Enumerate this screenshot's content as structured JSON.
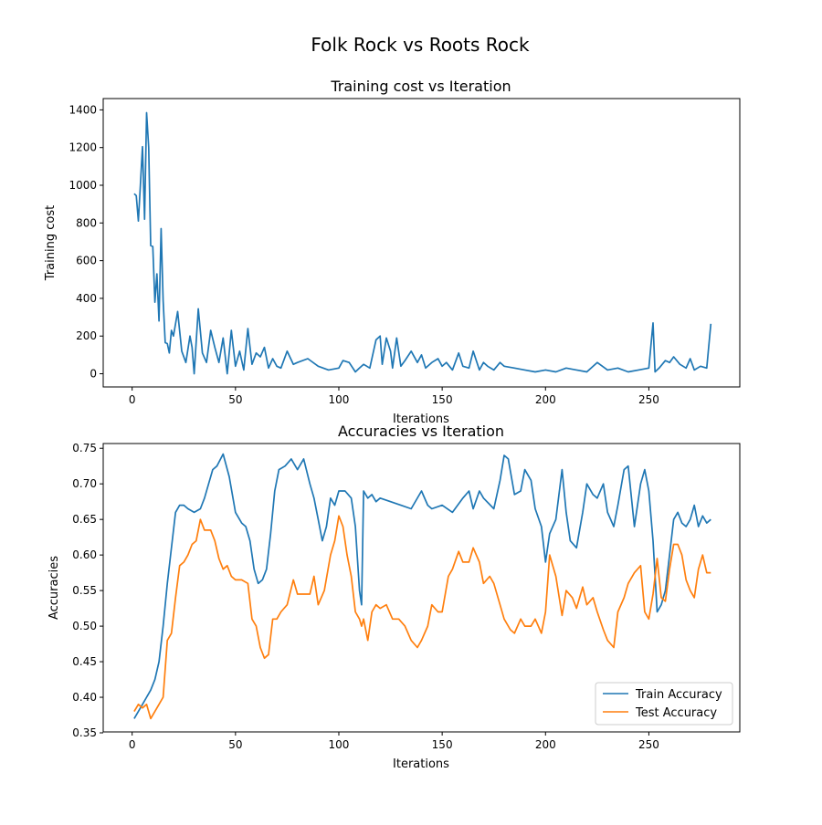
{
  "suptitle": "Folk Rock vs Roots Rock",
  "colors": {
    "blue": "#1f77b4",
    "orange": "#ff7f0e"
  },
  "chart_data": [
    {
      "type": "line",
      "title": "Training cost vs Iteration",
      "xlabel": "Iterations",
      "ylabel": "Training cost",
      "xlim": [
        -14,
        294
      ],
      "ylim": [
        -70,
        1460
      ],
      "xticks": [
        0,
        50,
        100,
        150,
        200,
        250
      ],
      "yticks": [
        0,
        200,
        400,
        600,
        800,
        1000,
        1200,
        1400
      ],
      "grid": false,
      "series": [
        {
          "color": "#1f77b4",
          "x": [
            1,
            2,
            3,
            4,
            5,
            6,
            7,
            8,
            9,
            10,
            11,
            12,
            13,
            14,
            15,
            16,
            17,
            18,
            19,
            20,
            22,
            24,
            26,
            28,
            29,
            30,
            32,
            34,
            36,
            38,
            40,
            42,
            44,
            46,
            48,
            50,
            52,
            54,
            56,
            58,
            60,
            62,
            64,
            66,
            68,
            70,
            72,
            75,
            78,
            80,
            85,
            90,
            95,
            100,
            102,
            105,
            108,
            110,
            112,
            115,
            118,
            120,
            121,
            123,
            125,
            126,
            128,
            130,
            132,
            135,
            138,
            140,
            142,
            145,
            148,
            150,
            152,
            155,
            158,
            160,
            163,
            165,
            168,
            170,
            172,
            175,
            178,
            180,
            185,
            190,
            195,
            200,
            205,
            210,
            215,
            220,
            225,
            230,
            235,
            240,
            245,
            250,
            252,
            253,
            255,
            258,
            260,
            262,
            265,
            268,
            270,
            272,
            275,
            278,
            280
          ],
          "y": [
            955,
            945,
            810,
            1000,
            1205,
            820,
            1385,
            1200,
            680,
            675,
            380,
            530,
            280,
            770,
            390,
            165,
            160,
            110,
            230,
            200,
            330,
            120,
            60,
            200,
            140,
            0,
            345,
            110,
            60,
            230,
            140,
            60,
            190,
            0,
            230,
            40,
            120,
            20,
            240,
            50,
            110,
            90,
            140,
            30,
            80,
            40,
            30,
            120,
            50,
            60,
            80,
            40,
            20,
            30,
            70,
            60,
            10,
            30,
            50,
            30,
            180,
            200,
            50,
            190,
            120,
            30,
            190,
            40,
            70,
            120,
            60,
            100,
            30,
            60,
            80,
            40,
            60,
            20,
            110,
            40,
            30,
            120,
            20,
            60,
            40,
            20,
            60,
            40,
            30,
            20,
            10,
            20,
            10,
            30,
            20,
            10,
            60,
            20,
            30,
            10,
            20,
            30,
            270,
            10,
            30,
            70,
            60,
            90,
            50,
            30,
            80,
            20,
            40,
            30,
            265
          ]
        }
      ]
    },
    {
      "type": "line",
      "title": "Accuracies vs Iteration",
      "xlabel": "Iterations",
      "ylabel": "Accuracies",
      "xlim": [
        -14,
        294
      ],
      "ylim": [
        0.3513,
        0.7567
      ],
      "xticks": [
        0,
        50,
        100,
        150,
        200,
        250
      ],
      "yticks": [
        0.35,
        0.4,
        0.45,
        0.5,
        0.55,
        0.6,
        0.65,
        0.7,
        0.75
      ],
      "grid": false,
      "legend": "lower right",
      "series": [
        {
          "name": "Train Accuracy",
          "color": "#1f77b4",
          "x": [
            1,
            3,
            5,
            7,
            9,
            11,
            13,
            15,
            17,
            19,
            21,
            23,
            25,
            27,
            30,
            33,
            35,
            37,
            39,
            41,
            44,
            47,
            50,
            53,
            55,
            57,
            59,
            61,
            63,
            65,
            67,
            69,
            71,
            74,
            77,
            80,
            83,
            86,
            88,
            90,
            92,
            94,
            96,
            98,
            100,
            103,
            106,
            108,
            110,
            111,
            112,
            114,
            116,
            118,
            120,
            125,
            130,
            135,
            140,
            143,
            145,
            150,
            155,
            160,
            163,
            165,
            168,
            170,
            175,
            178,
            180,
            182,
            185,
            188,
            190,
            193,
            195,
            198,
            200,
            202,
            205,
            208,
            210,
            212,
            215,
            218,
            220,
            223,
            225,
            228,
            230,
            233,
            235,
            238,
            240,
            243,
            246,
            248,
            250,
            252,
            254,
            256,
            258,
            260,
            262,
            264,
            266,
            268,
            270,
            272,
            274,
            276,
            278,
            280
          ],
          "y": [
            0.37,
            0.38,
            0.39,
            0.4,
            0.41,
            0.425,
            0.45,
            0.5,
            0.56,
            0.61,
            0.66,
            0.67,
            0.67,
            0.665,
            0.66,
            0.665,
            0.68,
            0.7,
            0.72,
            0.725,
            0.742,
            0.71,
            0.66,
            0.645,
            0.64,
            0.62,
            0.58,
            0.56,
            0.565,
            0.58,
            0.63,
            0.69,
            0.72,
            0.725,
            0.735,
            0.72,
            0.735,
            0.7,
            0.68,
            0.65,
            0.62,
            0.64,
            0.68,
            0.67,
            0.69,
            0.69,
            0.68,
            0.64,
            0.55,
            0.53,
            0.69,
            0.68,
            0.685,
            0.675,
            0.68,
            0.675,
            0.67,
            0.665,
            0.69,
            0.67,
            0.665,
            0.67,
            0.66,
            0.68,
            0.69,
            0.665,
            0.69,
            0.68,
            0.665,
            0.705,
            0.74,
            0.735,
            0.685,
            0.69,
            0.72,
            0.705,
            0.665,
            0.64,
            0.59,
            0.63,
            0.65,
            0.72,
            0.66,
            0.62,
            0.61,
            0.66,
            0.7,
            0.685,
            0.68,
            0.7,
            0.66,
            0.64,
            0.67,
            0.72,
            0.725,
            0.64,
            0.7,
            0.72,
            0.69,
            0.62,
            0.52,
            0.53,
            0.55,
            0.6,
            0.65,
            0.66,
            0.645,
            0.64,
            0.65,
            0.67,
            0.64,
            0.655,
            0.645,
            0.65
          ]
        },
        {
          "name": "Test Accuracy",
          "color": "#ff7f0e",
          "x": [
            1,
            3,
            5,
            7,
            9,
            11,
            13,
            15,
            17,
            19,
            21,
            23,
            25,
            27,
            29,
            31,
            33,
            35,
            38,
            40,
            42,
            44,
            46,
            48,
            50,
            53,
            56,
            58,
            60,
            62,
            64,
            66,
            68,
            70,
            72,
            75,
            78,
            80,
            83,
            86,
            88,
            90,
            93,
            96,
            98,
            100,
            102,
            104,
            106,
            108,
            110,
            111,
            112,
            114,
            116,
            118,
            120,
            123,
            126,
            129,
            132,
            135,
            138,
            140,
            143,
            145,
            148,
            150,
            153,
            155,
            158,
            160,
            163,
            165,
            168,
            170,
            173,
            175,
            178,
            180,
            183,
            185,
            188,
            190,
            193,
            195,
            198,
            200,
            202,
            205,
            208,
            210,
            213,
            215,
            218,
            220,
            223,
            225,
            228,
            230,
            233,
            235,
            238,
            240,
            243,
            246,
            248,
            250,
            252,
            254,
            256,
            258,
            260,
            262,
            264,
            266,
            268,
            270,
            272,
            274,
            276,
            278,
            280
          ],
          "y": [
            0.38,
            0.39,
            0.385,
            0.39,
            0.37,
            0.38,
            0.39,
            0.4,
            0.48,
            0.49,
            0.54,
            0.585,
            0.59,
            0.6,
            0.615,
            0.62,
            0.65,
            0.635,
            0.635,
            0.62,
            0.595,
            0.58,
            0.585,
            0.57,
            0.565,
            0.565,
            0.56,
            0.51,
            0.5,
            0.47,
            0.455,
            0.46,
            0.51,
            0.51,
            0.52,
            0.53,
            0.565,
            0.545,
            0.545,
            0.545,
            0.57,
            0.53,
            0.55,
            0.6,
            0.62,
            0.655,
            0.64,
            0.6,
            0.57,
            0.52,
            0.51,
            0.5,
            0.51,
            0.48,
            0.52,
            0.53,
            0.525,
            0.53,
            0.51,
            0.51,
            0.5,
            0.48,
            0.47,
            0.48,
            0.5,
            0.53,
            0.52,
            0.52,
            0.57,
            0.58,
            0.605,
            0.59,
            0.59,
            0.61,
            0.59,
            0.56,
            0.57,
            0.56,
            0.53,
            0.51,
            0.495,
            0.49,
            0.51,
            0.5,
            0.5,
            0.51,
            0.49,
            0.52,
            0.6,
            0.57,
            0.515,
            0.55,
            0.54,
            0.525,
            0.555,
            0.53,
            0.54,
            0.52,
            0.495,
            0.48,
            0.47,
            0.52,
            0.54,
            0.56,
            0.575,
            0.585,
            0.52,
            0.51,
            0.545,
            0.595,
            0.54,
            0.535,
            0.58,
            0.615,
            0.615,
            0.6,
            0.565,
            0.55,
            0.54,
            0.58,
            0.6,
            0.575,
            0.575
          ]
        }
      ]
    }
  ]
}
